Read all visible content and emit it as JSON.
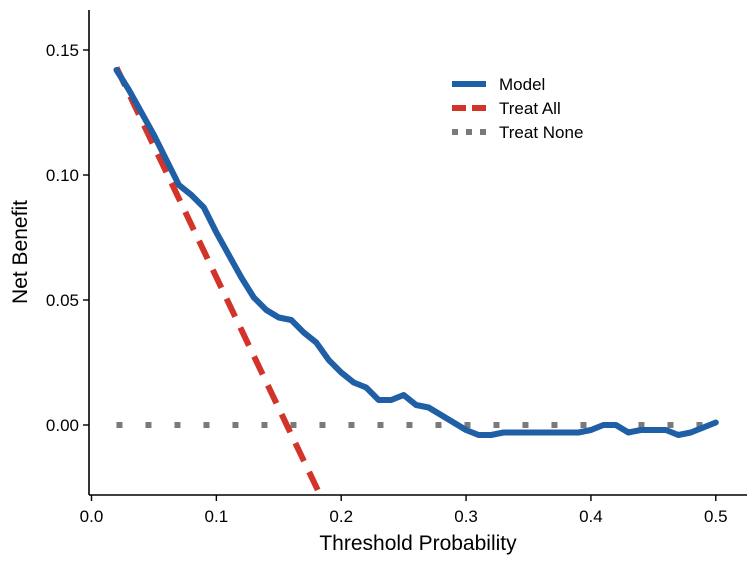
{
  "chart_data": {
    "type": "line",
    "xlabel": "Threshold Probability",
    "ylabel": "Net Benefit",
    "xlim": [
      -0.002,
      0.525
    ],
    "ylim": [
      -0.028,
      0.166
    ],
    "x_ticks": [
      0.0,
      0.1,
      0.2,
      0.3,
      0.4,
      0.5
    ],
    "x_tick_labels": [
      "0.0",
      "0.1",
      "0.2",
      "0.3",
      "0.4",
      "0.5"
    ],
    "y_ticks": [
      0.0,
      0.05,
      0.1,
      0.15
    ],
    "y_tick_labels": [
      "0.00",
      "0.05",
      "0.10",
      "0.15"
    ],
    "grid": false,
    "legend_position": "top-right",
    "colors": {
      "model": "#1f5fa6",
      "treat_all": "#d3342a",
      "treat_none": "#7a7a7a"
    },
    "series": [
      {
        "name": "Model",
        "style": "solid",
        "color": "#1f5fa6",
        "x": [
          0.02,
          0.03,
          0.04,
          0.05,
          0.06,
          0.07,
          0.08,
          0.09,
          0.1,
          0.11,
          0.12,
          0.13,
          0.14,
          0.15,
          0.16,
          0.17,
          0.18,
          0.19,
          0.2,
          0.21,
          0.22,
          0.23,
          0.24,
          0.25,
          0.26,
          0.27,
          0.28,
          0.29,
          0.3,
          0.31,
          0.32,
          0.33,
          0.34,
          0.35,
          0.36,
          0.37,
          0.38,
          0.39,
          0.4,
          0.41,
          0.42,
          0.43,
          0.44,
          0.45,
          0.46,
          0.47,
          0.48,
          0.49,
          0.5
        ],
        "y": [
          0.142,
          0.134,
          0.125,
          0.116,
          0.106,
          0.096,
          0.092,
          0.087,
          0.077,
          0.068,
          0.059,
          0.051,
          0.046,
          0.043,
          0.042,
          0.037,
          0.033,
          0.026,
          0.021,
          0.017,
          0.015,
          0.01,
          0.01,
          0.012,
          0.008,
          0.007,
          0.004,
          0.001,
          -0.002,
          -0.004,
          -0.004,
          -0.003,
          -0.003,
          -0.003,
          -0.003,
          -0.003,
          -0.003,
          -0.003,
          -0.002,
          0.0,
          0.0,
          -0.003,
          -0.002,
          -0.002,
          -0.002,
          -0.004,
          -0.003,
          -0.001,
          0.001
        ]
      },
      {
        "name": "Treat All",
        "style": "dashed",
        "color": "#d3342a",
        "x": [
          0.02,
          0.185
        ],
        "y": [
          0.143,
          -0.03
        ]
      },
      {
        "name": "Treat None",
        "style": "dotted",
        "color": "#7a7a7a",
        "x": [
          0.02,
          0.5
        ],
        "y": [
          0.0,
          0.0
        ]
      }
    ]
  }
}
